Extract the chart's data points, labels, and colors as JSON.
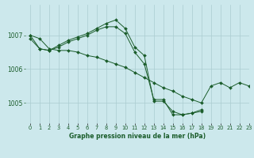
{
  "title": "Graphe pression niveau de la mer (hPa)",
  "background_color": "#cce8ec",
  "grid_color": "#aaccd0",
  "line_color": "#1a5c2a",
  "xlim": [
    -0.5,
    23
  ],
  "ylim": [
    1004.4,
    1007.9
  ],
  "yticks": [
    1005,
    1006,
    1007
  ],
  "x_labels": [
    "0",
    "1",
    "2",
    "3",
    "4",
    "5",
    "6",
    "7",
    "8",
    "9",
    "10",
    "11",
    "12",
    "13",
    "14",
    "15",
    "16",
    "17",
    "18",
    "19",
    "20",
    "21",
    "22",
    "23"
  ],
  "series": [
    [
      1007.0,
      1006.9,
      1006.6,
      1006.55,
      1006.55,
      1006.5,
      1006.4,
      1006.35,
      1006.25,
      1006.15,
      1006.05,
      1005.9,
      1005.75,
      1005.6,
      1005.45,
      1005.35,
      1005.2,
      1005.1,
      1005.0,
      1005.5,
      1005.6,
      1005.45,
      1005.6,
      1005.5
    ],
    [
      1007.0,
      1006.6,
      1006.55,
      1006.7,
      1006.85,
      1006.95,
      1007.05,
      1007.2,
      1007.35,
      1007.45,
      1007.2,
      1006.65,
      1006.4,
      1005.05,
      1005.05,
      1004.75,
      1004.65,
      1004.7,
      1004.8,
      null,
      null,
      null,
      null,
      null
    ],
    [
      1006.9,
      1006.6,
      1006.55,
      1006.65,
      1006.8,
      1006.9,
      1007.0,
      1007.15,
      1007.25,
      1007.25,
      1007.05,
      1006.5,
      1006.15,
      1005.1,
      1005.1,
      1004.65,
      1004.65,
      1004.7,
      1004.75,
      null,
      null,
      null,
      null,
      null
    ]
  ]
}
